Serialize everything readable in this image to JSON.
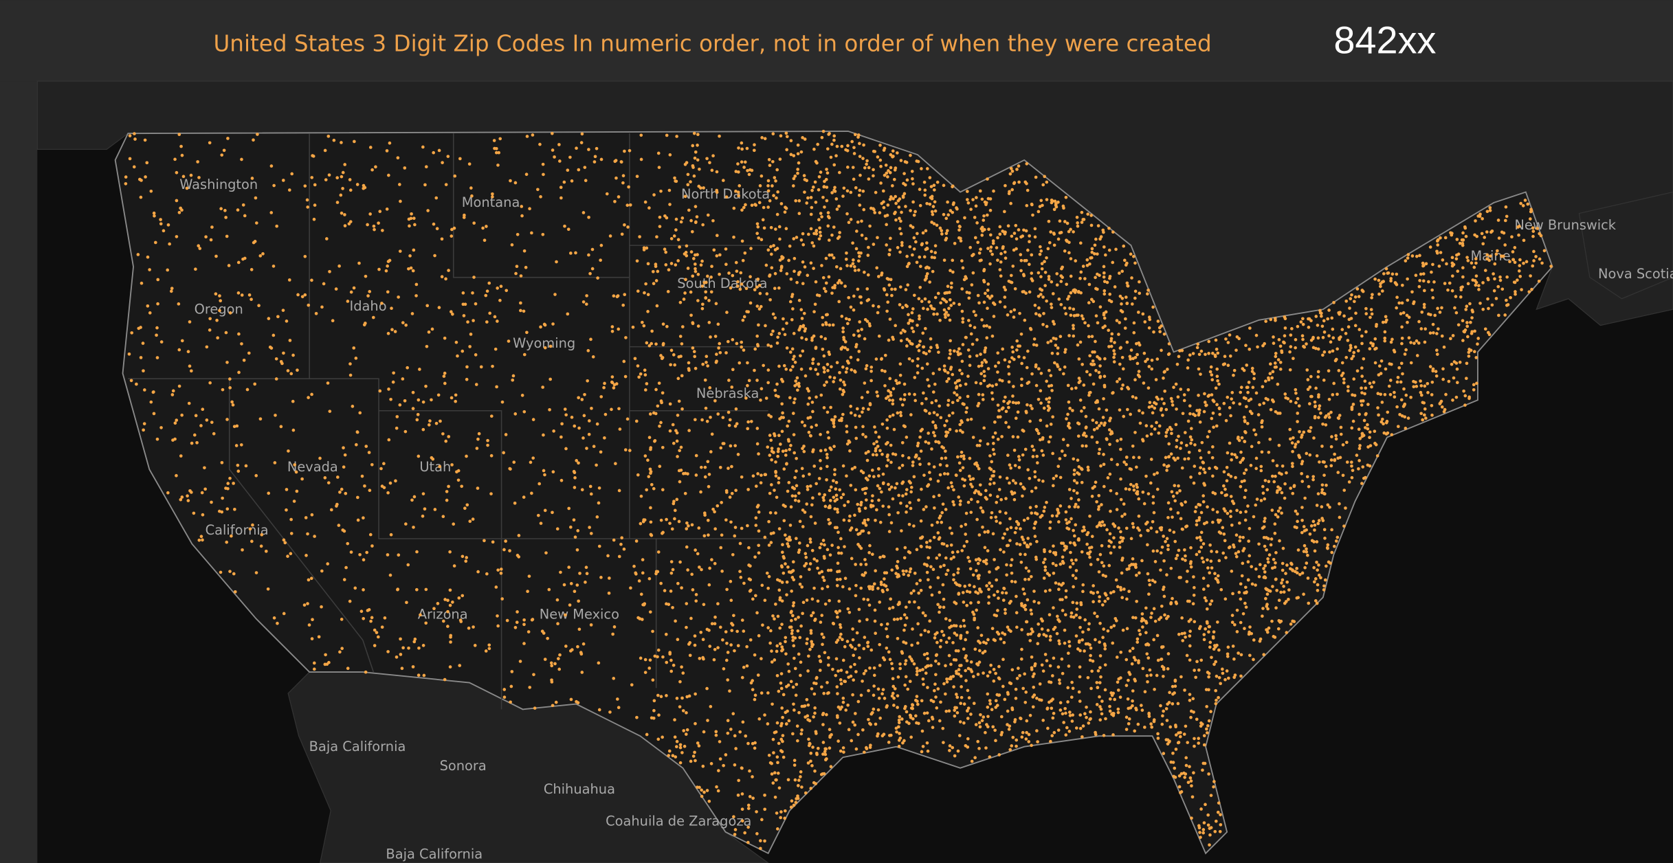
{
  "header": {
    "title": "United States 3 Digit Zip Codes  In numeric order, not in order of when they were created",
    "code": "842xx"
  },
  "map": {
    "labels": [
      "Washington",
      "Oregon",
      "Idaho",
      "Montana",
      "Wyoming",
      "North Dakota",
      "South Dakota",
      "Nebraska",
      "Nevada",
      "Utah",
      "California",
      "Arizona",
      "New Mexico",
      "Baja California",
      "Sonora",
      "Chihuahua",
      "Coahuila de Zaragoza",
      "Baja California",
      "New Brunswick",
      "Nova Scotia",
      "Maine"
    ]
  }
}
